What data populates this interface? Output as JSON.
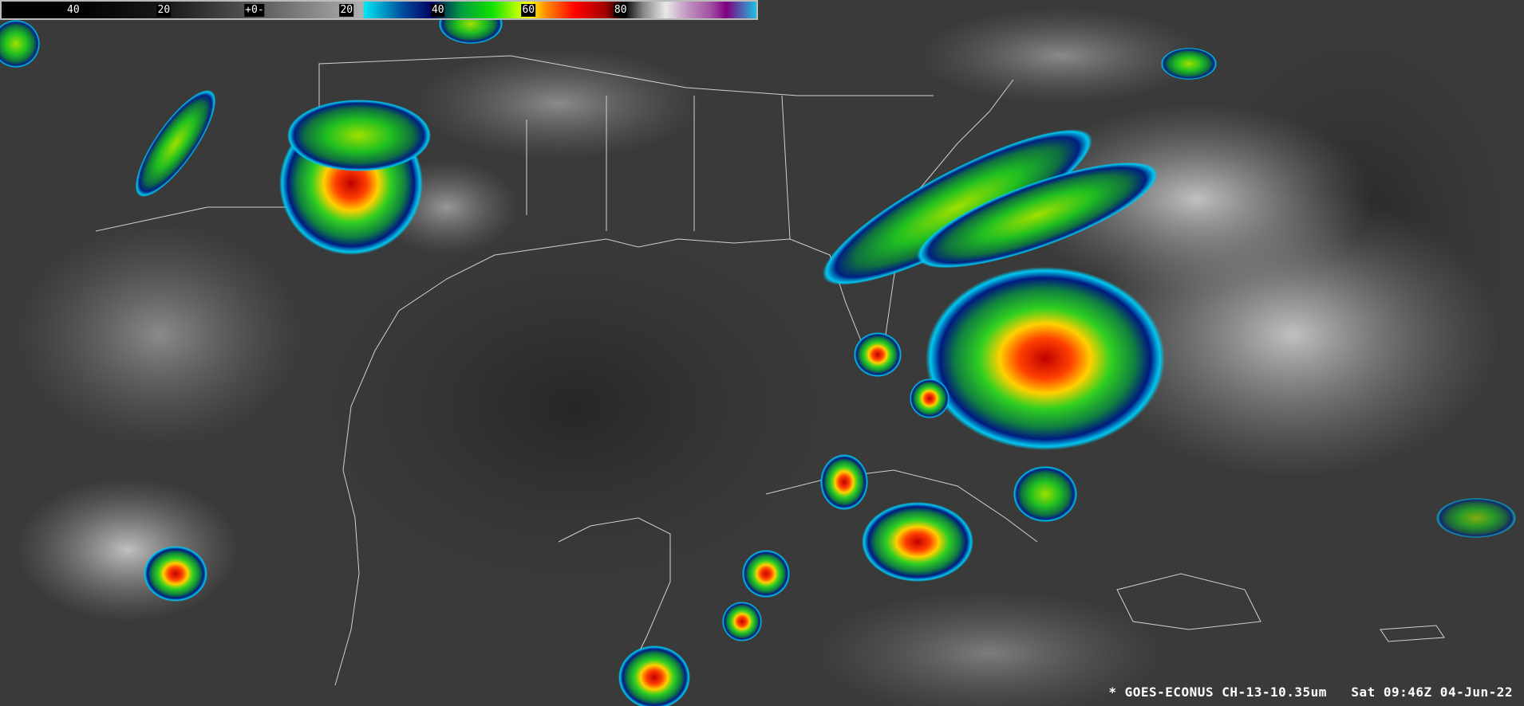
{
  "colorbar": {
    "labels": [
      "40",
      "20",
      "+0-",
      "20",
      "40",
      "60",
      "80"
    ]
  },
  "caption": {
    "marker": "*",
    "satellite": "GOES-ECONUS CH-13-10.35um",
    "timestamp": "Sat 09:46Z 04-Jun-22"
  },
  "colors": {
    "background": "#3a3a3a",
    "cloud_gray": "#c8c8c8",
    "coastline": "#d0d0d0"
  }
}
